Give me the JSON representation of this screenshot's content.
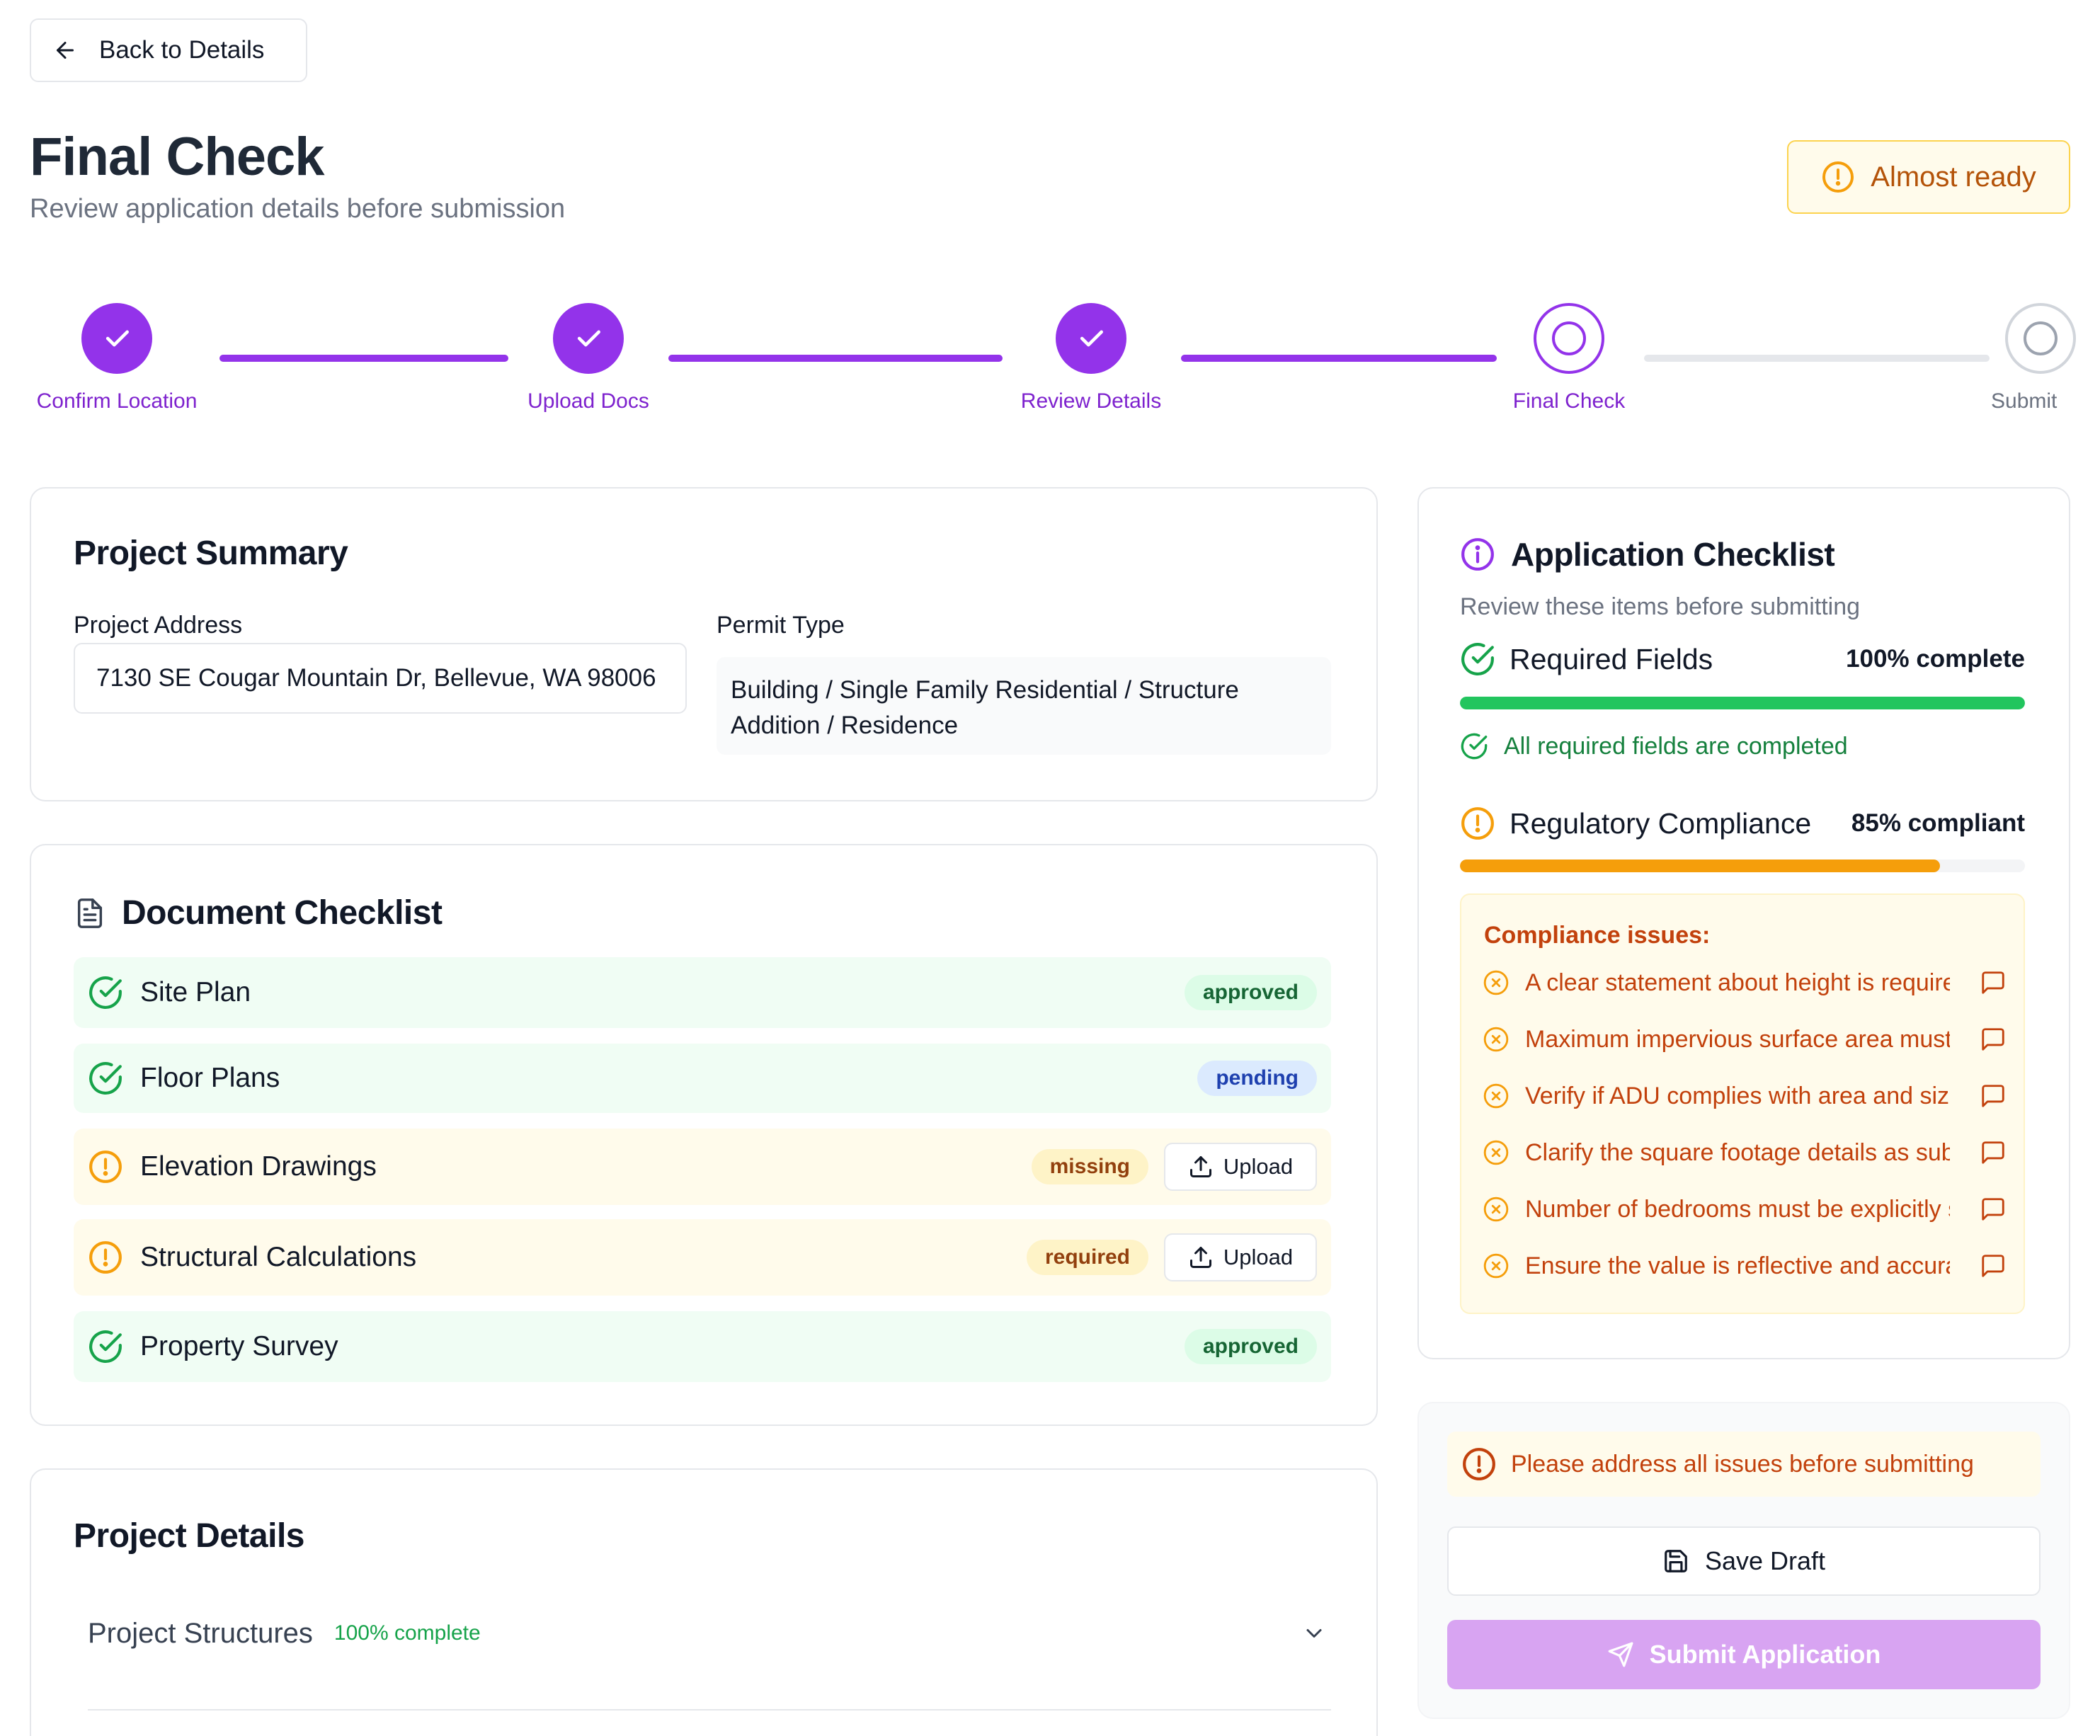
{
  "back_button": {
    "label": "Back to Details"
  },
  "header": {
    "title": "Final Check",
    "subtitle": "Review application details before submission",
    "status_badge": "Almost ready"
  },
  "stepper": {
    "steps": [
      {
        "label": "Confirm Location",
        "state": "done"
      },
      {
        "label": "Upload Docs",
        "state": "done"
      },
      {
        "label": "Review Details",
        "state": "done"
      },
      {
        "label": "Final Check",
        "state": "current"
      },
      {
        "label": "Submit",
        "state": "todo"
      }
    ]
  },
  "project_summary": {
    "title": "Project Summary",
    "address_label": "Project Address",
    "address_value": "7130 SE Cougar Mountain Dr, Bellevue, WA 98006",
    "permit_label": "Permit Type",
    "permit_value": "Building / Single Family Residential / Structure Addition / Residence"
  },
  "document_checklist": {
    "title": "Document Checklist",
    "upload_label": "Upload",
    "items": [
      {
        "name": "Site Plan",
        "status": "approved",
        "icon": "check-circle-icon"
      },
      {
        "name": "Floor Plans",
        "status": "pending",
        "icon": "check-circle-icon"
      },
      {
        "name": "Elevation Drawings",
        "status": "missing",
        "icon": "alert-circle-icon"
      },
      {
        "name": "Structural Calculations",
        "status": "required",
        "icon": "alert-circle-icon"
      },
      {
        "name": "Property Survey",
        "status": "approved",
        "icon": "check-circle-icon"
      }
    ]
  },
  "project_details": {
    "title": "Project Details",
    "sections": [
      {
        "name": "Project Structures",
        "progress": "100% complete"
      }
    ]
  },
  "application_checklist": {
    "title": "Application Checklist",
    "subtitle": "Review these items before submitting",
    "required_fields": {
      "label": "Required Fields",
      "percent_label": "100% complete",
      "progress": 1.0,
      "note": "All required fields are completed",
      "color": "#22c55e"
    },
    "compliance": {
      "label": "Regulatory Compliance",
      "percent_label": "85% compliant",
      "progress": 0.85,
      "color": "#f59e0b",
      "issues_title": "Compliance issues:",
      "issues": [
        "A clear statement about height is required",
        "Maximum impervious surface area must be stated",
        "Verify if ADU complies with area and size limits",
        "Clarify the square footage details as submitted",
        "Number of bedrooms must be explicitly stated",
        "Ensure the value is reflective and accurate"
      ]
    }
  },
  "actions": {
    "warning": "Please address all issues before submitting",
    "save_label": "Save Draft",
    "submit_label": "Submit Application"
  },
  "colors": {
    "accent": "#9333ea",
    "success": "#16a34a",
    "warning": "#f59e0b"
  }
}
